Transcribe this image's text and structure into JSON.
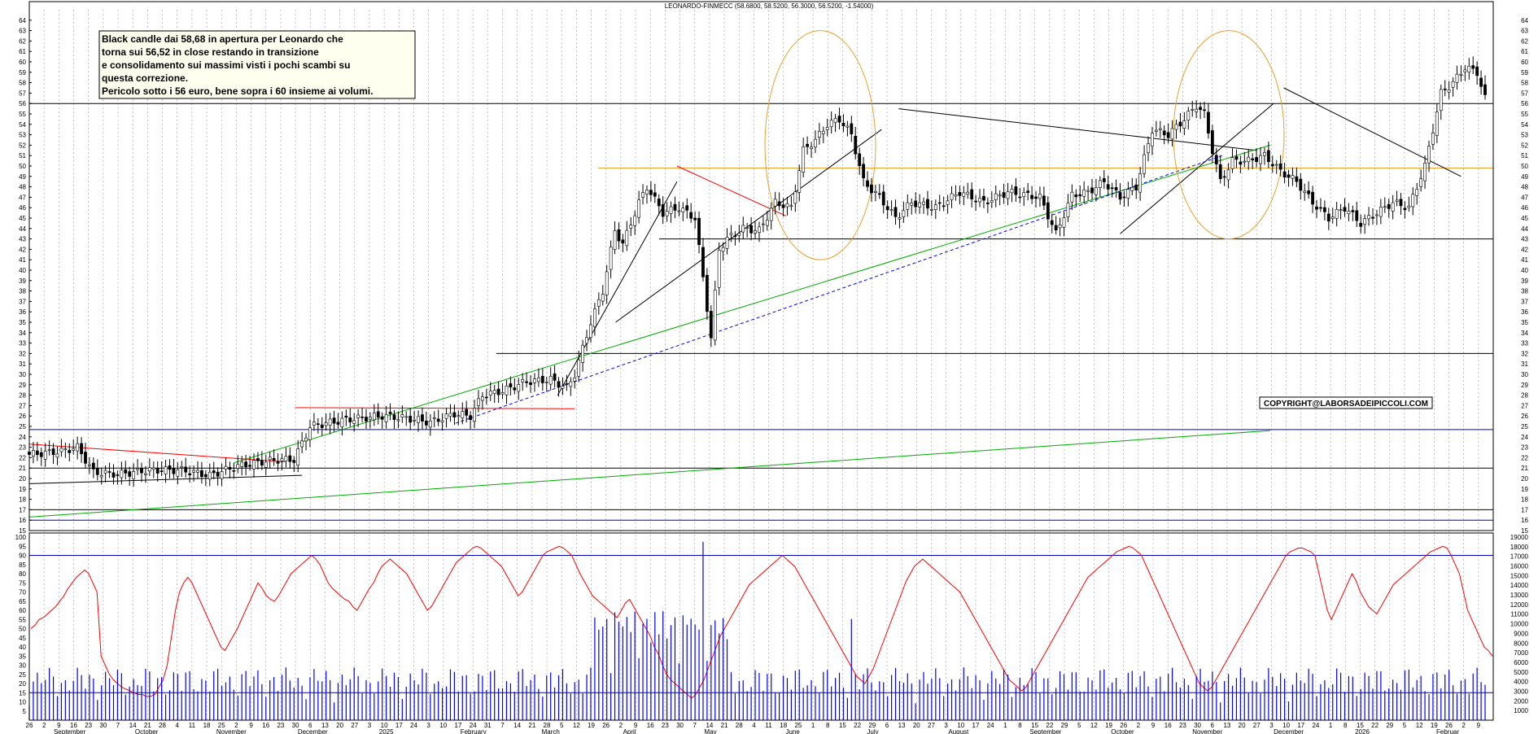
{
  "chart_data": [
    {
      "type": "candlestick",
      "title": "LEONARDO-FINMECC (58.6800, 58.5200, 56.3000, 56.5200, -1.54000)",
      "ohlc_last": {
        "open": 58.68,
        "high": 58.52,
        "low": 56.3,
        "close": 56.52,
        "change": -1.54
      },
      "ylim": [
        15,
        65
      ],
      "y_ticks": [
        15,
        16,
        17,
        18,
        19,
        20,
        21,
        22,
        23,
        24,
        25,
        26,
        27,
        28,
        29,
        30,
        31,
        32,
        33,
        34,
        35,
        36,
        37,
        38,
        39,
        40,
        41,
        42,
        43,
        44,
        45,
        46,
        47,
        48,
        49,
        50,
        51,
        52,
        53,
        54,
        55,
        56,
        57,
        58,
        59,
        60,
        61,
        62,
        63,
        64
      ],
      "grid": true,
      "price_path": [
        [
          0,
          22.3
        ],
        [
          8,
          22.6
        ],
        [
          12,
          23.0
        ],
        [
          16,
          20.6
        ],
        [
          22,
          20.4
        ],
        [
          30,
          20.8
        ],
        [
          38,
          20.8
        ],
        [
          45,
          20.3
        ],
        [
          52,
          21.2
        ],
        [
          58,
          21.6
        ],
        [
          62,
          21.8
        ],
        [
          66,
          21.8
        ],
        [
          70,
          25.0
        ],
        [
          74,
          25.3
        ],
        [
          80,
          25.7
        ],
        [
          88,
          26.0
        ],
        [
          94,
          25.8
        ],
        [
          100,
          25.4
        ],
        [
          106,
          26.2
        ],
        [
          110,
          26.0
        ],
        [
          113,
          28.0
        ],
        [
          118,
          28.4
        ],
        [
          124,
          29.3
        ],
        [
          130,
          29.5
        ],
        [
          134,
          28.7
        ],
        [
          136,
          30.0
        ],
        [
          140,
          35.0
        ],
        [
          143,
          38.0
        ],
        [
          146,
          43.8
        ],
        [
          148,
          42.5
        ],
        [
          152,
          46.5
        ],
        [
          154,
          48.0
        ],
        [
          158,
          45.5
        ],
        [
          162,
          46.0
        ],
        [
          166,
          45.0
        ],
        [
          170,
          33.5
        ],
        [
          172,
          42.0
        ],
        [
          174,
          43.0
        ],
        [
          178,
          44.0
        ],
        [
          182,
          43.8
        ],
        [
          186,
          46.5
        ],
        [
          190,
          46.0
        ],
        [
          193,
          51.5
        ],
        [
          196,
          52.5
        ],
        [
          199,
          54.0
        ],
        [
          202,
          54.5
        ],
        [
          205,
          53.0
        ],
        [
          208,
          48.5
        ],
        [
          212,
          47.0
        ],
        [
          216,
          45.0
        ],
        [
          220,
          46.5
        ],
        [
          226,
          46.0
        ],
        [
          232,
          47.5
        ],
        [
          238,
          46.5
        ],
        [
          244,
          47.5
        ],
        [
          252,
          47.0
        ],
        [
          256,
          43.5
        ],
        [
          260,
          47.2
        ],
        [
          264,
          47.5
        ],
        [
          268,
          48.5
        ],
        [
          272,
          47.0
        ],
        [
          276,
          48.0
        ],
        [
          280,
          53.5
        ],
        [
          284,
          53.0
        ],
        [
          288,
          54.5
        ],
        [
          291,
          55.8
        ],
        [
          293,
          55.0
        ],
        [
          295,
          51.5
        ],
        [
          297,
          48.5
        ],
        [
          300,
          50.5
        ],
        [
          304,
          50.5
        ],
        [
          308,
          51.0
        ],
        [
          312,
          49.5
        ],
        [
          316,
          48.5
        ],
        [
          320,
          46.5
        ],
        [
          324,
          45.0
        ],
        [
          328,
          46.0
        ],
        [
          332,
          44.5
        ],
        [
          336,
          45.5
        ],
        [
          340,
          46.5
        ],
        [
          344,
          46.0
        ],
        [
          346,
          48.0
        ],
        [
          348,
          50.0
        ],
        [
          350,
          53.5
        ],
        [
          352,
          57.0
        ],
        [
          355,
          58.0
        ],
        [
          358,
          59.5
        ],
        [
          361,
          59.0
        ],
        [
          363,
          56.5
        ]
      ],
      "annotations": [
        "Black candle dai 58,68 in apertura per Leonardo che",
        "torna sui 56,52 in close  restando in transizione",
        "e consolidamento sui massimi visti i pochi scambi su",
        "questa correzione.",
        "Pericolo sotto i 56 euro, bene sopra i 60 insieme ai volumi."
      ],
      "horizontal_levels": [
        16,
        17,
        21,
        24.7,
        32,
        43,
        49.8,
        56
      ],
      "copyright": "COPYRIGHT@LABORSADEIPICCOLI.COM"
    },
    {
      "type": "line",
      "series": [
        {
          "name": "",
          "color": "#ff0000"
        }
      ],
      "ylim": [
        0,
        100
      ],
      "y_ticks": [
        5,
        10,
        15,
        20,
        25,
        30,
        35,
        40,
        45,
        50,
        55,
        60,
        65,
        70,
        75,
        80,
        85,
        90,
        95,
        100
      ],
      "levels": [
        15,
        90
      ],
      "values": [
        50,
        52,
        55,
        56,
        58,
        60,
        62,
        65,
        68,
        72,
        75,
        78,
        80,
        82,
        80,
        75,
        70,
        35,
        30,
        25,
        22,
        20,
        18,
        17,
        16,
        15,
        14,
        14,
        13,
        13,
        14,
        18,
        22,
        30,
        45,
        60,
        70,
        75,
        78,
        75,
        70,
        65,
        60,
        55,
        50,
        45,
        40,
        38,
        42,
        46,
        50,
        55,
        60,
        65,
        70,
        75,
        72,
        68,
        66,
        65,
        68,
        72,
        76,
        80,
        82,
        84,
        86,
        88,
        90,
        88,
        85,
        80,
        75,
        72,
        70,
        68,
        66,
        65,
        62,
        60,
        64,
        68,
        72,
        75,
        80,
        84,
        86,
        88,
        86,
        84,
        82,
        80,
        76,
        72,
        68,
        64,
        60,
        62,
        66,
        70,
        74,
        78,
        82,
        86,
        88,
        90,
        92,
        94,
        95,
        94,
        92,
        90,
        88,
        86,
        84,
        80,
        76,
        72,
        68,
        70,
        74,
        78,
        82,
        86,
        90,
        92,
        93,
        94,
        95,
        94,
        92,
        90,
        85,
        80,
        76,
        72,
        68,
        66,
        64,
        62,
        60,
        58,
        56,
        60,
        64,
        66,
        62,
        58,
        54,
        50,
        46,
        40,
        36,
        30,
        25,
        22,
        20,
        18,
        16,
        14,
        12,
        14,
        18,
        22,
        28,
        34,
        40,
        46,
        50,
        54,
        58,
        62,
        66,
        70,
        74,
        76,
        78,
        80,
        82,
        84,
        86,
        88,
        90,
        88,
        86,
        84,
        80,
        76,
        72,
        68,
        64,
        60,
        56,
        52,
        48,
        44,
        40,
        36,
        32,
        28,
        24,
        22,
        20,
        24,
        28,
        34,
        40,
        46,
        52,
        58,
        64,
        70,
        76,
        80,
        84,
        86,
        88,
        86,
        84,
        82,
        80,
        78,
        76,
        74,
        72,
        70,
        66,
        62,
        58,
        54,
        50,
        46,
        42,
        38,
        34,
        30,
        26,
        22,
        20,
        18,
        16,
        18,
        22,
        26,
        30,
        34,
        38,
        42,
        46,
        50,
        54,
        58,
        62,
        66,
        70,
        74,
        78,
        80,
        82,
        84,
        86,
        88,
        90,
        92,
        93,
        94,
        95,
        94,
        92,
        90,
        85,
        80,
        75,
        70,
        65,
        60,
        55,
        50,
        45,
        40,
        35,
        30,
        25,
        20,
        18,
        16,
        18,
        22,
        26,
        30,
        34,
        38,
        42,
        46,
        50,
        54,
        58,
        62,
        66,
        70,
        74,
        78,
        82,
        86,
        90,
        92,
        93,
        94,
        94,
        93,
        92,
        90,
        80,
        70,
        60,
        55,
        60,
        65,
        70,
        75,
        80,
        76,
        70,
        66,
        62,
        60,
        58,
        62,
        66,
        70,
        74,
        76,
        78,
        80,
        82,
        84,
        86,
        88,
        90,
        92,
        93,
        94,
        95,
        94,
        90,
        85,
        80,
        70,
        60,
        55,
        50,
        45,
        40,
        38,
        35
      ]
    },
    {
      "type": "bar",
      "series": [
        {
          "name": "",
          "color": "#0000ff"
        }
      ],
      "ylim": [
        0,
        19000
      ],
      "y_ticks": [
        1000,
        2000,
        3000,
        4000,
        5000,
        6000,
        7000,
        8000,
        9000,
        10000,
        11000,
        12000,
        13000,
        14000,
        15000,
        16000,
        17000,
        18000,
        19000
      ]
    }
  ],
  "x_axis": {
    "months": [
      "September",
      "October",
      "November",
      "December",
      "2025",
      "February",
      "March",
      "April",
      "May",
      "June",
      "July",
      "August",
      "September",
      "October",
      "November",
      "December",
      "2026",
      "Februar"
    ],
    "days": [
      "26",
      "2",
      "9",
      "16",
      "23",
      "30",
      "7",
      "14",
      "21",
      "28",
      "4",
      "11",
      "18",
      "25",
      "2",
      "9",
      "16",
      "23",
      "30",
      "6",
      "13",
      "20",
      "27",
      "3",
      "10",
      "17",
      "24",
      "3",
      "10",
      "17",
      "24",
      "31",
      "7",
      "14",
      "21",
      "28",
      "5",
      "12",
      "19",
      "26",
      "2",
      "9",
      "16",
      "23",
      "30",
      "7",
      "14",
      "21",
      "28",
      "4",
      "11",
      "18",
      "25",
      "1",
      "8",
      "15",
      "22",
      "29",
      "6",
      "13",
      "20",
      "27",
      "3",
      "10",
      "17",
      "24",
      "1",
      "8",
      "15",
      "22",
      "29",
      "5",
      "12",
      "19",
      "26",
      "2",
      "9",
      "16",
      "23",
      "30",
      "6",
      "13",
      "20",
      "27",
      "3",
      "10",
      "17",
      "24",
      "1",
      "8",
      "15",
      "22",
      "29",
      "5",
      "12",
      "19",
      "26",
      "2",
      "9"
    ]
  }
}
